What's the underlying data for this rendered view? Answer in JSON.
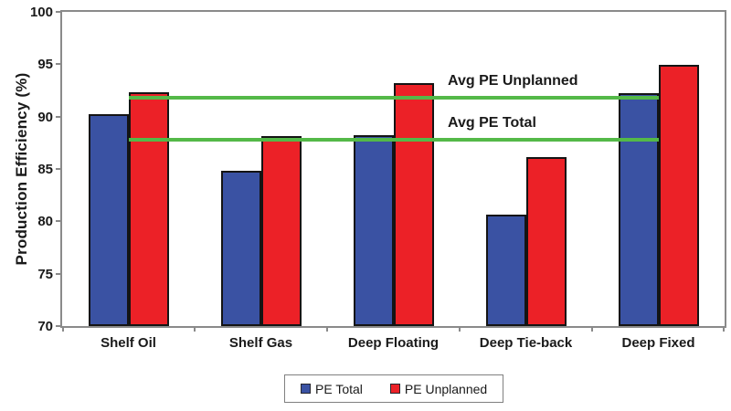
{
  "chart_data": {
    "type": "bar",
    "title": "",
    "xlabel": "",
    "ylabel": "Production Efficiency (%)",
    "ylim": [
      70,
      100
    ],
    "yticks": [
      70,
      75,
      80,
      85,
      90,
      95,
      100
    ],
    "categories": [
      "Shelf Oil",
      "Shelf Gas",
      "Deep Floating",
      "Deep Tie-back",
      "Deep Fixed"
    ],
    "series": [
      {
        "name": "PE Total",
        "color": "#3A52A3",
        "values": [
          90.2,
          84.8,
          88.2,
          80.6,
          92.2
        ]
      },
      {
        "name": "PE Unplanned",
        "color": "#EC2127",
        "values": [
          92.3,
          88.1,
          93.2,
          86.1,
          94.9
        ]
      }
    ],
    "reference_lines": [
      {
        "label": "Avg PE Unplanned",
        "value": 91.8,
        "color": "#54B948"
      },
      {
        "label": "Avg PE Total",
        "value": 87.8,
        "color": "#54B948"
      }
    ],
    "legend": {
      "position": "bottom",
      "entries": [
        "PE Total",
        "PE Unplanned"
      ]
    },
    "grid": false,
    "axis_color": "#8a8a8a",
    "bar_border_color": "#141414",
    "text_color": "#1a1a1a"
  }
}
